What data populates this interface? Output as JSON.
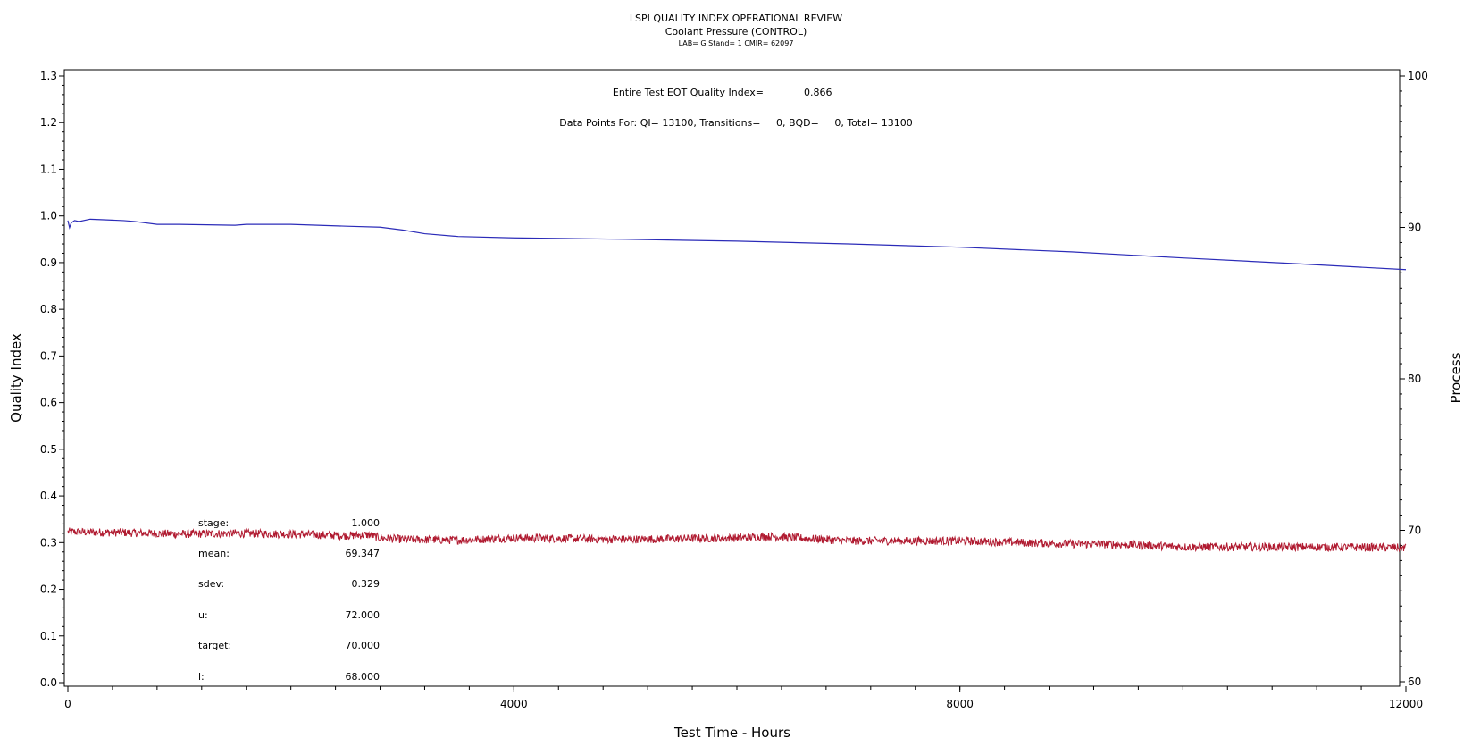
{
  "chart_data": {
    "type": "line",
    "title": "LSPI QUALITY INDEX OPERATIONAL REVIEW",
    "subtitle": "Coolant Pressure (CONTROL)",
    "subtitle2": "LAB= G Stand= 1 CMIR= 62097",
    "annotations": {
      "eot_label": "Entire Test EOT Quality Index=",
      "eot_value": "0.866",
      "datapoints": "Data Points For: QI= 13100, Transitions=     0, BQD=     0, Total= 13100"
    },
    "xlabel": "Test Time - Hours",
    "ylabel": "Quality Index",
    "y2label": "Process",
    "xlim": [
      0,
      12000
    ],
    "ylim": [
      0,
      1.3
    ],
    "y2lim": [
      60,
      100
    ],
    "x_ticks": [
      "0",
      "4000",
      "8000",
      "12000"
    ],
    "y_ticks": [
      "0.0",
      "0.1",
      "0.2",
      "0.3",
      "0.4",
      "0.5",
      "0.6",
      "0.7",
      "0.8",
      "0.9",
      "1.0",
      "1.1",
      "1.2",
      "1.3"
    ],
    "y2_ticks": [
      "60",
      "70",
      "80",
      "90",
      "100"
    ],
    "series": [
      {
        "axis": "left",
        "color": "#2b2bb8",
        "x": [
          0,
          15,
          30,
          60,
          100,
          200,
          300,
          500,
          600,
          800,
          1000,
          1500,
          1600,
          2000,
          2500,
          2800,
          3000,
          3200,
          3500,
          4000,
          5000,
          6000,
          7000,
          8000,
          9000,
          10000,
          11000,
          12000
        ],
        "y": [
          0.99,
          0.975,
          0.985,
          0.99,
          0.988,
          0.993,
          0.992,
          0.99,
          0.988,
          0.982,
          0.982,
          0.98,
          0.982,
          0.982,
          0.978,
          0.976,
          0.97,
          0.962,
          0.956,
          0.953,
          0.95,
          0.946,
          0.94,
          0.933,
          0.923,
          0.91,
          0.898,
          0.885
        ]
      },
      {
        "axis": "right",
        "color": "#b01a30",
        "x": [
          0,
          500,
          1000,
          1500,
          2000,
          2500,
          2700,
          2800,
          3000,
          3500,
          4000,
          5000,
          6000,
          6300,
          7000,
          8000,
          9000,
          9500,
          10000,
          11000,
          12000
        ],
        "y": [
          69.9,
          69.85,
          69.75,
          69.8,
          69.75,
          69.65,
          69.7,
          69.5,
          69.4,
          69.35,
          69.5,
          69.4,
          69.5,
          69.6,
          69.3,
          69.3,
          69.1,
          69.05,
          68.9,
          68.9,
          68.85
        ]
      }
    ],
    "stats": [
      {
        "label": "stage:",
        "value": "1.000"
      },
      {
        "label": "mean:",
        "value": "69.347"
      },
      {
        "label": "sdev:",
        "value": "0.329"
      },
      {
        "label": "u:",
        "value": "72.000"
      },
      {
        "label": "target:",
        "value": "70.000"
      },
      {
        "label": "l:",
        "value": "68.000"
      }
    ]
  }
}
